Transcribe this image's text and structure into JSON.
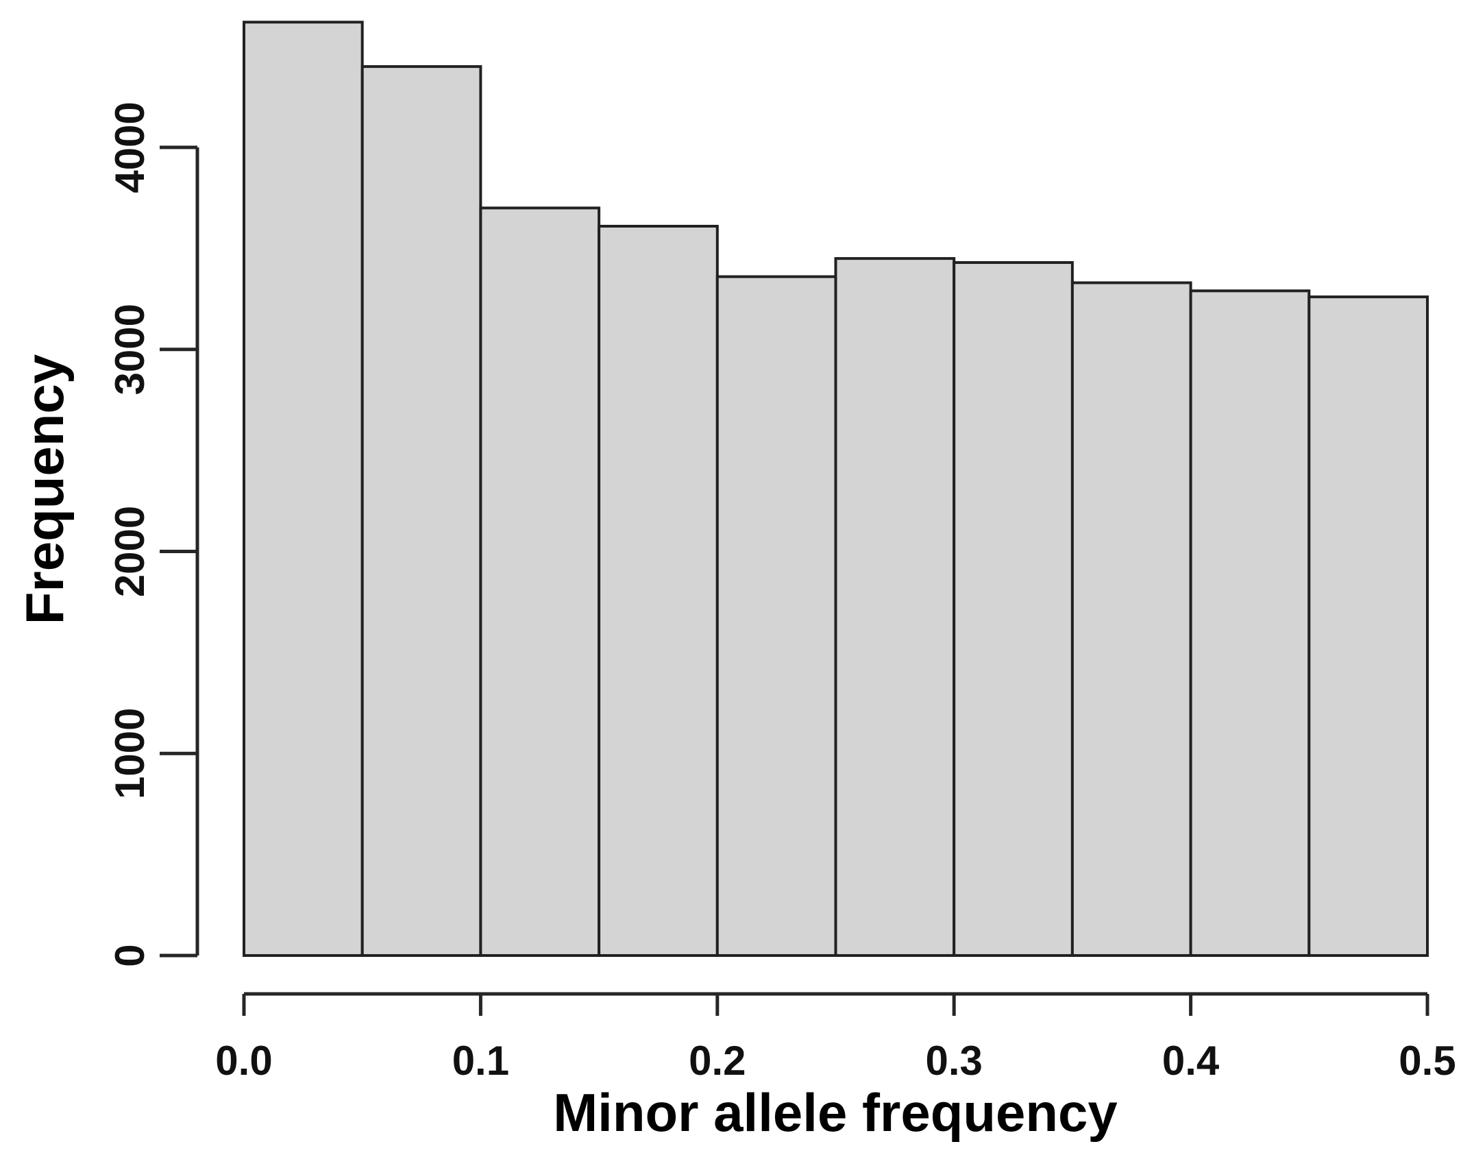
{
  "figure": {
    "background": "#ffffff"
  },
  "chart_data": {
    "type": "bar",
    "subtype": "histogram",
    "title": "",
    "xlabel": "Minor allele frequency",
    "ylabel": "Frequency",
    "bin_edges": [
      0.0,
      0.05,
      0.1,
      0.15,
      0.2,
      0.25,
      0.3,
      0.35,
      0.4,
      0.45,
      0.5
    ],
    "counts": [
      4620,
      4400,
      3700,
      3610,
      3360,
      3450,
      3430,
      3330,
      3290,
      3260
    ],
    "x_tick_labels": [
      "0.0",
      "0.1",
      "0.2",
      "0.3",
      "0.4",
      "0.5"
    ],
    "y_tick_labels": [
      "0",
      "1000",
      "2000",
      "3000",
      "4000"
    ],
    "xlim": [
      0.0,
      0.5
    ],
    "ylim": [
      0,
      4700
    ],
    "grid": false,
    "legend": null,
    "bar_fill": "#d4d4d4",
    "bar_border": "#212121",
    "axis_color": "#262626",
    "text_color": "#111111"
  }
}
